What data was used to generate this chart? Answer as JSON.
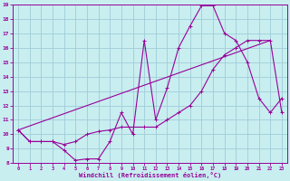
{
  "xlabel": "Windchill (Refroidissement éolien,°C)",
  "bg_color": "#c8eef0",
  "line_color": "#990099",
  "grid_color": "#a0ccd8",
  "xlim": [
    -0.5,
    23.5
  ],
  "ylim": [
    8,
    19
  ],
  "xticks": [
    0,
    1,
    2,
    3,
    4,
    5,
    6,
    7,
    8,
    9,
    10,
    11,
    12,
    13,
    14,
    15,
    16,
    17,
    18,
    19,
    20,
    21,
    22,
    23
  ],
  "yticks": [
    8,
    9,
    10,
    11,
    12,
    13,
    14,
    15,
    16,
    17,
    18,
    19
  ],
  "line1_x": [
    0,
    1,
    2,
    3,
    4,
    5,
    6,
    7,
    8,
    9,
    10,
    11,
    12,
    13,
    14,
    15,
    16,
    17,
    18,
    19,
    20,
    21,
    22,
    23
  ],
  "line1_y": [
    10.3,
    9.5,
    9.5,
    9.5,
    8.9,
    8.2,
    8.3,
    8.3,
    9.5,
    11.5,
    10.0,
    16.5,
    11.0,
    13.2,
    16.0,
    17.5,
    18.9,
    18.9,
    17.0,
    16.5,
    15.0,
    12.5,
    11.5,
    12.5
  ],
  "line2_x": [
    0,
    1,
    2,
    3,
    4,
    5,
    6,
    7,
    8,
    9,
    10,
    11,
    12,
    13,
    14,
    15,
    16,
    17,
    18,
    19,
    20,
    21,
    22,
    23
  ],
  "line2_y": [
    10.3,
    9.5,
    9.5,
    9.5,
    9.3,
    9.5,
    10.0,
    10.2,
    10.3,
    10.5,
    10.5,
    10.5,
    10.5,
    11.0,
    11.5,
    12.0,
    13.0,
    14.5,
    15.5,
    16.0,
    16.5,
    16.5,
    16.5,
    11.5
  ],
  "line3_x": [
    0,
    22
  ],
  "line3_y": [
    10.3,
    16.5
  ]
}
